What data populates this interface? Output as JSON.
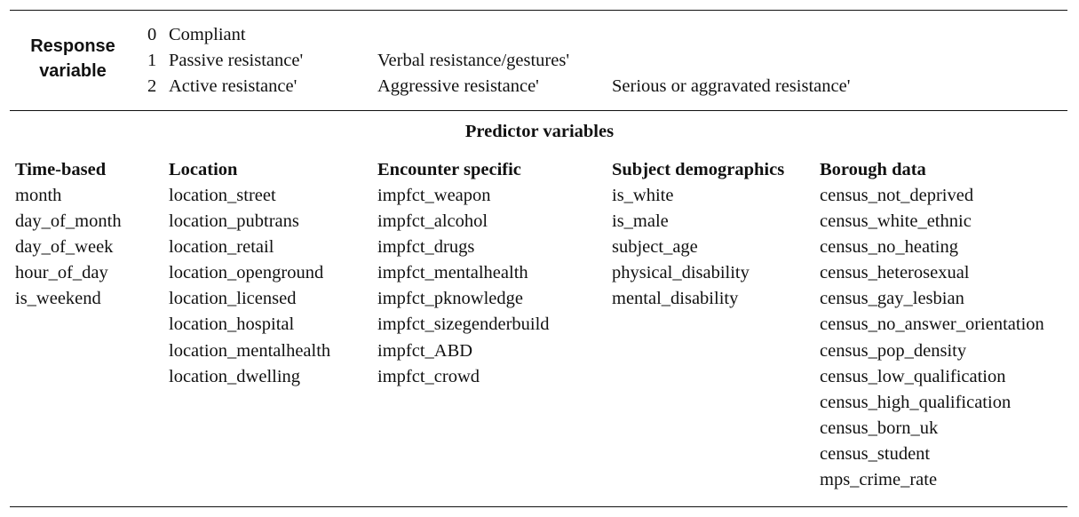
{
  "response": {
    "label": "Response variable",
    "rows": [
      {
        "num": "0",
        "c1": "Compliant",
        "c2": "",
        "c3": ""
      },
      {
        "num": "1",
        "c1": "Passive resistance'",
        "c2": "Verbal resistance/gestures'",
        "c3": ""
      },
      {
        "num": "2",
        "c1": "Active resistance'",
        "c2": "Aggressive resistance'",
        "c3": "Serious or aggravated resistance'"
      }
    ]
  },
  "predictors": {
    "title": "Predictor variables",
    "columns": [
      {
        "heading": "Time-based",
        "items": [
          "month",
          "day_of_month",
          "day_of_week",
          "hour_of_day",
          "is_weekend"
        ]
      },
      {
        "heading": "Location",
        "items": [
          "location_street",
          "location_pubtrans",
          "location_retail",
          "location_openground",
          "location_licensed",
          "location_hospital",
          "location_mentalhealth",
          "location_dwelling"
        ]
      },
      {
        "heading": "Encounter specific",
        "items": [
          "impfct_weapon",
          "impfct_alcohol",
          "impfct_drugs",
          "impfct_mentalhealth",
          "impfct_pknowledge",
          "impfct_sizegenderbuild",
          "impfct_ABD",
          "impfct_crowd"
        ]
      },
      {
        "heading": "Subject demographics",
        "items": [
          "is_white",
          "is_male",
          "subject_age",
          "physical_disability",
          "mental_disability"
        ]
      },
      {
        "heading": "Borough data",
        "items": [
          "census_not_deprived",
          "census_white_ethnic",
          "census_no_heating",
          "census_heterosexual",
          "census_gay_lesbian",
          "census_no_answer_orientation",
          "census_pop_density",
          "census_low_qualification",
          "census_high_qualification",
          "census_born_uk",
          "census_student",
          "mps_crime_rate"
        ]
      }
    ]
  }
}
